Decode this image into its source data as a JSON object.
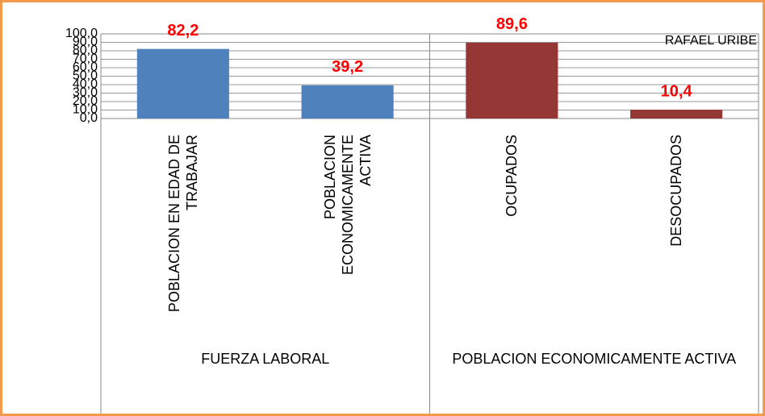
{
  "chart_data": {
    "type": "bar",
    "categories": [
      "POBLACION EN EDAD DE TRABAJAR",
      "POBLACION ECONOMICAMENTE ACTIVA",
      "OCUPADOS",
      "DESOCUPADOS"
    ],
    "groups": [
      "FUERZA LABORAL",
      "POBLACION ECONOMICAMENTE ACTIVA"
    ],
    "series": [
      {
        "name": "RAFAEL URIBE",
        "colors": [
          "#4f81bd",
          "#4f81bd",
          "#953735",
          "#953735"
        ],
        "values": [
          82.2,
          39.2,
          89.6,
          10.4
        ],
        "value_labels": [
          "82,2",
          "39,2",
          "89,6",
          "10,4"
        ]
      }
    ],
    "ylim": [
      0,
      100
    ],
    "yticks": [
      {
        "value": 0,
        "label": "0,0"
      },
      {
        "value": 10,
        "label": "10,0"
      },
      {
        "value": 20,
        "label": "20,0"
      },
      {
        "value": 30,
        "label": "30,0"
      },
      {
        "value": 40,
        "label": "40,0"
      },
      {
        "value": 50,
        "label": "50,0"
      },
      {
        "value": 60,
        "label": "60,0"
      },
      {
        "value": 70,
        "label": "70,0"
      },
      {
        "value": 80,
        "label": "80,0"
      },
      {
        "value": 90,
        "label": "90,0"
      },
      {
        "value": 100,
        "label": "100,0"
      }
    ],
    "grid": true,
    "legend": "top-right",
    "value_label_color": "#ff0000"
  }
}
